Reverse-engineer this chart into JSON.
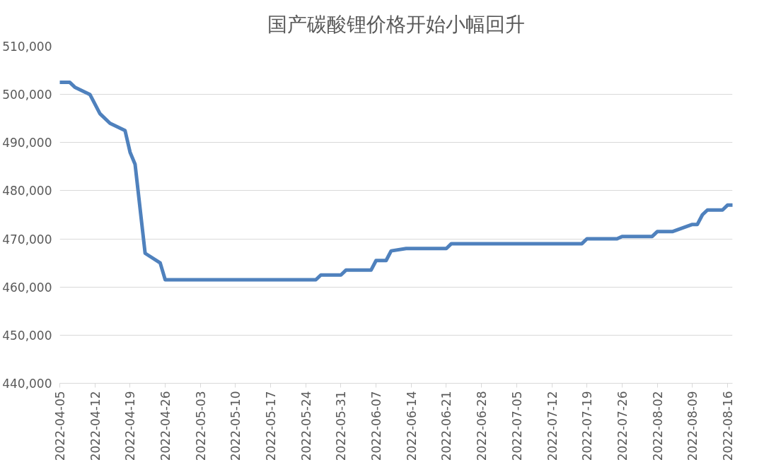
{
  "chart_data": {
    "type": "line",
    "title": "国产碳酸锂价格开始小幅回升",
    "x": [
      "2022-04-05",
      "2022-04-07",
      "2022-04-08",
      "2022-04-11",
      "2022-04-13",
      "2022-04-15",
      "2022-04-18",
      "2022-04-19",
      "2022-04-20",
      "2022-04-22",
      "2022-04-25",
      "2022-04-26",
      "2022-05-26",
      "2022-05-27",
      "2022-05-31",
      "2022-06-01",
      "2022-06-06",
      "2022-06-07",
      "2022-06-09",
      "2022-06-10",
      "2022-06-13",
      "2022-06-21",
      "2022-06-22",
      "2022-07-18",
      "2022-07-19",
      "2022-07-25",
      "2022-07-26",
      "2022-08-01",
      "2022-08-02",
      "2022-08-05",
      "2022-08-09",
      "2022-08-10",
      "2022-08-11",
      "2022-08-12",
      "2022-08-15",
      "2022-08-16",
      "2022-08-17"
    ],
    "series": [
      {
        "color": "#4f81bd",
        "values": [
          502500,
          502500,
          501500,
          500000,
          496000,
          494000,
          492500,
          488000,
          485500,
          467000,
          465000,
          461500,
          461500,
          462500,
          462500,
          463500,
          463500,
          465500,
          465500,
          467500,
          468000,
          468000,
          469000,
          469000,
          470000,
          470000,
          470500,
          470500,
          471500,
          471500,
          473000,
          473000,
          475000,
          476000,
          476000,
          477000,
          477000
        ]
      }
    ],
    "xlim": [
      "2022-04-05",
      "2022-08-17"
    ],
    "xticks": [
      "2022-04-05",
      "2022-04-12",
      "2022-04-19",
      "2022-04-26",
      "2022-05-03",
      "2022-05-10",
      "2022-05-17",
      "2022-05-24",
      "2022-05-31",
      "2022-06-07",
      "2022-06-14",
      "2022-06-21",
      "2022-06-28",
      "2022-07-05",
      "2022-07-12",
      "2022-07-19",
      "2022-07-26",
      "2022-08-02",
      "2022-08-09",
      "2022-08-16"
    ],
    "ylim": [
      440000,
      510000
    ],
    "yticks": [
      {
        "value": 440000,
        "label": "440,000"
      },
      {
        "value": 450000,
        "label": "450,000"
      },
      {
        "value": 460000,
        "label": "460,000"
      },
      {
        "value": 470000,
        "label": "470,000"
      },
      {
        "value": 480000,
        "label": "480,000"
      },
      {
        "value": 490000,
        "label": "490,000"
      },
      {
        "value": 500000,
        "label": "500,000"
      },
      {
        "value": 510000,
        "label": "510,000"
      }
    ],
    "grid": "y",
    "marker": "none",
    "line_style": "solid"
  }
}
